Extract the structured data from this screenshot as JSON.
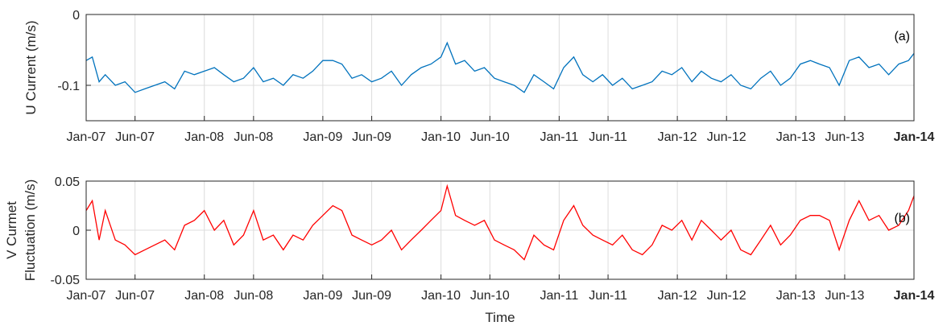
{
  "chart_data": [
    {
      "type": "line",
      "panel_tag": "(a)",
      "ylabel": "U Current (m/s)",
      "xlabel": "",
      "ylim": [
        -0.15,
        0
      ],
      "yticks": [
        0,
        -0.1
      ],
      "ytick_labels": [
        "0",
        "-0.1"
      ],
      "xlim": [
        "2007-01-01",
        "2014-01-01"
      ],
      "x_ticks": [
        "2007-01-01",
        "2007-06-01",
        "2008-01-01",
        "2008-06-01",
        "2009-01-01",
        "2009-06-01",
        "2010-01-01",
        "2010-06-01",
        "2011-01-01",
        "2011-06-01",
        "2012-01-01",
        "2012-06-01",
        "2013-01-01",
        "2013-06-01",
        "2014-01-01"
      ],
      "xtick_labels": [
        "Jan-07",
        "Jun-07",
        "Jan-08",
        "Jun-08",
        "Jan-09",
        "Jun-09",
        "Jan-10",
        "Jun-10",
        "Jan-11",
        "Jun-11",
        "Jan-12",
        "Jun-12",
        "Jan-13",
        "Jun-13",
        "Jan-14"
      ],
      "grid": true,
      "series": [
        {
          "color": "#0072BD",
          "x": [
            "2007-01-01",
            "2007-01-20",
            "2007-02-10",
            "2007-03-01",
            "2007-04-01",
            "2007-05-01",
            "2007-06-01",
            "2007-07-01",
            "2007-08-01",
            "2007-09-01",
            "2007-10-01",
            "2007-11-01",
            "2007-12-01",
            "2008-01-01",
            "2008-02-01",
            "2008-03-01",
            "2008-04-01",
            "2008-05-01",
            "2008-06-01",
            "2008-07-01",
            "2008-08-01",
            "2008-09-01",
            "2008-10-01",
            "2008-11-01",
            "2008-12-01",
            "2009-01-01",
            "2009-02-01",
            "2009-03-01",
            "2009-04-01",
            "2009-05-01",
            "2009-06-01",
            "2009-07-01",
            "2009-08-01",
            "2009-09-01",
            "2009-10-01",
            "2009-11-01",
            "2009-12-01",
            "2010-01-01",
            "2010-01-20",
            "2010-02-15",
            "2010-03-15",
            "2010-04-15",
            "2010-05-15",
            "2010-06-15",
            "2010-07-15",
            "2010-08-15",
            "2010-09-15",
            "2010-10-15",
            "2010-11-15",
            "2010-12-15",
            "2011-01-15",
            "2011-02-15",
            "2011-03-15",
            "2011-04-15",
            "2011-05-15",
            "2011-06-15",
            "2011-07-15",
            "2011-08-15",
            "2011-09-15",
            "2011-10-15",
            "2011-11-15",
            "2011-12-15",
            "2012-01-15",
            "2012-02-15",
            "2012-03-15",
            "2012-04-15",
            "2012-05-15",
            "2012-06-15",
            "2012-07-15",
            "2012-08-15",
            "2012-09-15",
            "2012-10-15",
            "2012-11-15",
            "2012-12-15",
            "2013-01-15",
            "2013-02-15",
            "2013-03-15",
            "2013-04-15",
            "2013-05-15",
            "2013-06-15",
            "2013-07-15",
            "2013-08-15",
            "2013-09-15",
            "2013-10-15",
            "2013-11-15",
            "2013-12-15",
            "2014-01-01"
          ],
          "y": [
            -0.065,
            -0.06,
            -0.095,
            -0.085,
            -0.1,
            -0.095,
            -0.11,
            -0.105,
            -0.1,
            -0.095,
            -0.105,
            -0.08,
            -0.085,
            -0.08,
            -0.075,
            -0.085,
            -0.095,
            -0.09,
            -0.075,
            -0.095,
            -0.09,
            -0.1,
            -0.085,
            -0.09,
            -0.08,
            -0.065,
            -0.065,
            -0.07,
            -0.09,
            -0.085,
            -0.095,
            -0.09,
            -0.08,
            -0.1,
            -0.085,
            -0.075,
            -0.07,
            -0.06,
            -0.04,
            -0.07,
            -0.065,
            -0.08,
            -0.075,
            -0.09,
            -0.095,
            -0.1,
            -0.11,
            -0.085,
            -0.095,
            -0.105,
            -0.075,
            -0.06,
            -0.085,
            -0.095,
            -0.085,
            -0.1,
            -0.09,
            -0.105,
            -0.1,
            -0.095,
            -0.08,
            -0.085,
            -0.075,
            -0.095,
            -0.08,
            -0.09,
            -0.095,
            -0.085,
            -0.1,
            -0.105,
            -0.09,
            -0.08,
            -0.1,
            -0.09,
            -0.07,
            -0.065,
            -0.07,
            -0.075,
            -0.1,
            -0.065,
            -0.06,
            -0.075,
            -0.07,
            -0.085,
            -0.07,
            -0.065,
            -0.055
          ]
        }
      ]
    },
    {
      "type": "line",
      "panel_tag": "(b)",
      "ylabel_lines": [
        "V Curmet",
        "Fluctuation (m/s)"
      ],
      "xlabel": "Time",
      "ylim": [
        -0.05,
        0.05
      ],
      "yticks": [
        0.05,
        0,
        -0.05
      ],
      "ytick_labels": [
        "0.05",
        "0",
        "-0.05"
      ],
      "xlim": [
        "2007-01-01",
        "2014-01-01"
      ],
      "x_ticks": [
        "2007-01-01",
        "2007-06-01",
        "2008-01-01",
        "2008-06-01",
        "2009-01-01",
        "2009-06-01",
        "2010-01-01",
        "2010-06-01",
        "2011-01-01",
        "2011-06-01",
        "2012-01-01",
        "2012-06-01",
        "2013-01-01",
        "2013-06-01",
        "2014-01-01"
      ],
      "xtick_labels": [
        "Jan-07",
        "Jun-07",
        "Jan-08",
        "Jun-08",
        "Jan-09",
        "Jun-09",
        "Jan-10",
        "Jun-10",
        "Jan-11",
        "Jun-11",
        "Jan-12",
        "Jun-12",
        "Jan-13",
        "Jun-13",
        "Jan-14"
      ],
      "grid": true,
      "series": [
        {
          "color": "#FF0000",
          "x": [
            "2007-01-01",
            "2007-01-20",
            "2007-02-10",
            "2007-03-01",
            "2007-04-01",
            "2007-05-01",
            "2007-06-01",
            "2007-07-01",
            "2007-08-01",
            "2007-09-01",
            "2007-10-01",
            "2007-11-01",
            "2007-12-01",
            "2008-01-01",
            "2008-02-01",
            "2008-03-01",
            "2008-04-01",
            "2008-05-01",
            "2008-06-01",
            "2008-07-01",
            "2008-08-01",
            "2008-09-01",
            "2008-10-01",
            "2008-11-01",
            "2008-12-01",
            "2009-01-01",
            "2009-02-01",
            "2009-03-01",
            "2009-04-01",
            "2009-05-01",
            "2009-06-01",
            "2009-07-01",
            "2009-08-01",
            "2009-09-01",
            "2009-10-01",
            "2009-11-01",
            "2009-12-01",
            "2010-01-01",
            "2010-01-20",
            "2010-02-15",
            "2010-03-15",
            "2010-04-15",
            "2010-05-15",
            "2010-06-15",
            "2010-07-15",
            "2010-08-15",
            "2010-09-15",
            "2010-10-15",
            "2010-11-15",
            "2010-12-15",
            "2011-01-15",
            "2011-02-15",
            "2011-03-15",
            "2011-04-15",
            "2011-05-15",
            "2011-06-15",
            "2011-07-15",
            "2011-08-15",
            "2011-09-15",
            "2011-10-15",
            "2011-11-15",
            "2011-12-15",
            "2012-01-15",
            "2012-02-15",
            "2012-03-15",
            "2012-04-15",
            "2012-05-15",
            "2012-06-15",
            "2012-07-15",
            "2012-08-15",
            "2012-09-15",
            "2012-10-15",
            "2012-11-15",
            "2012-12-15",
            "2013-01-15",
            "2013-02-15",
            "2013-03-15",
            "2013-04-15",
            "2013-05-15",
            "2013-06-15",
            "2013-07-15",
            "2013-08-15",
            "2013-09-15",
            "2013-10-15",
            "2013-11-15",
            "2013-12-15",
            "2014-01-01"
          ],
          "y": [
            0.02,
            0.03,
            -0.01,
            0.02,
            -0.01,
            -0.015,
            -0.025,
            -0.02,
            -0.015,
            -0.01,
            -0.02,
            0.005,
            0.01,
            0.02,
            0.0,
            0.01,
            -0.015,
            -0.005,
            0.02,
            -0.01,
            -0.005,
            -0.02,
            -0.005,
            -0.01,
            0.005,
            0.015,
            0.025,
            0.02,
            -0.005,
            -0.01,
            -0.015,
            -0.01,
            0.0,
            -0.02,
            -0.01,
            0.0,
            0.01,
            0.02,
            0.045,
            0.015,
            0.01,
            0.005,
            0.01,
            -0.01,
            -0.015,
            -0.02,
            -0.03,
            -0.005,
            -0.015,
            -0.02,
            0.01,
            0.025,
            0.005,
            -0.005,
            -0.01,
            -0.015,
            -0.005,
            -0.02,
            -0.025,
            -0.015,
            0.005,
            0.0,
            0.01,
            -0.01,
            0.01,
            0.0,
            -0.01,
            0.0,
            -0.02,
            -0.025,
            -0.01,
            0.005,
            -0.015,
            -0.005,
            0.01,
            0.015,
            0.015,
            0.01,
            -0.02,
            0.01,
            0.03,
            0.01,
            0.015,
            0.0,
            0.005,
            0.02,
            0.035
          ]
        }
      ]
    }
  ]
}
